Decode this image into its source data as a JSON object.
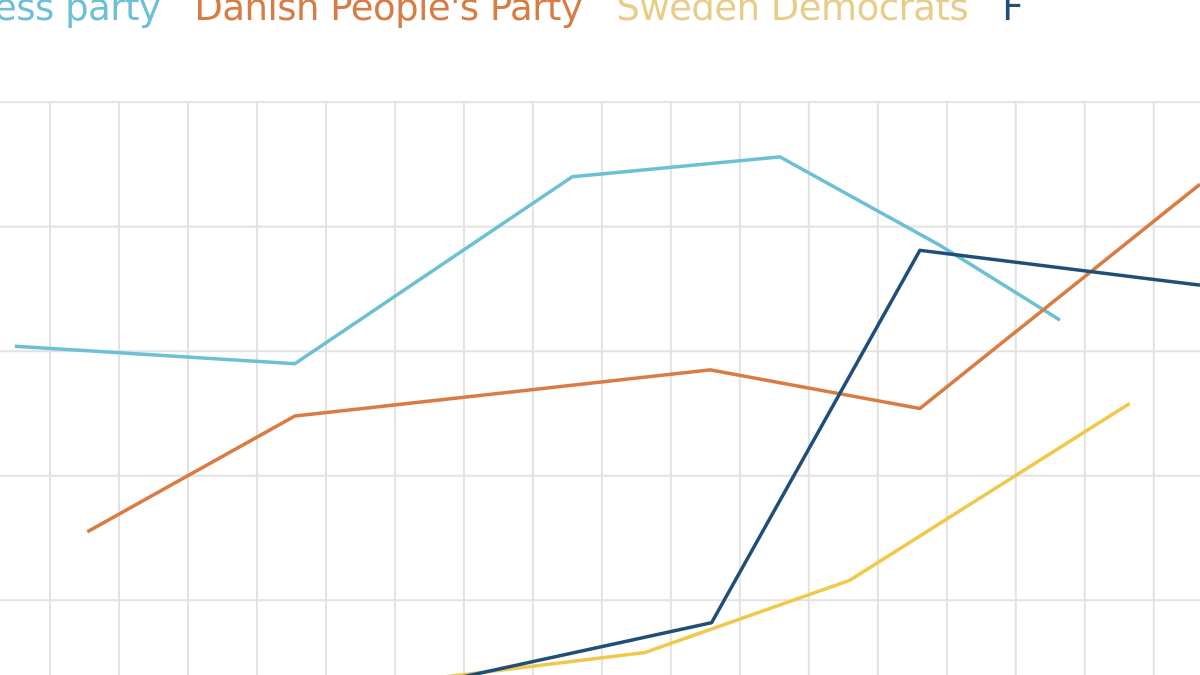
{
  "chart_data": {
    "type": "line",
    "title": "",
    "xlabel": "",
    "ylabel": "",
    "xlim": [
      -0.725,
      16.67
    ],
    "ylim": [
      0.4,
      5.82
    ],
    "grid": true,
    "legend_placement": "top",
    "series": [
      {
        "name": "ess party",
        "color": "#6cc0d6",
        "x": [
          -0.51,
          3.55,
          7.57,
          10.58,
          12.9,
          14.64
        ],
        "y": [
          3.04,
          2.9,
          4.4,
          4.56,
          3.85,
          3.25
        ]
      },
      {
        "name": "Danish People's Party",
        "color": "#d97c43",
        "x": [
          0.54,
          3.55,
          9.57,
          12.61,
          16.67
        ],
        "y": [
          1.55,
          2.48,
          2.85,
          2.54,
          4.34
        ]
      },
      {
        "name": "Sweden Democrats",
        "color": "#f0c84a",
        "legend_color": "#e8cd8a",
        "x": [
          5.36,
          8.62,
          11.59,
          15.65
        ],
        "y": [
          0.36,
          0.58,
          1.16,
          2.58
        ]
      },
      {
        "name": "F",
        "color": "#1f4f78",
        "x": [
          5.94,
          9.59,
          12.61,
          16.67
        ],
        "y": [
          0.38,
          0.82,
          3.81,
          3.53
        ]
      }
    ]
  }
}
